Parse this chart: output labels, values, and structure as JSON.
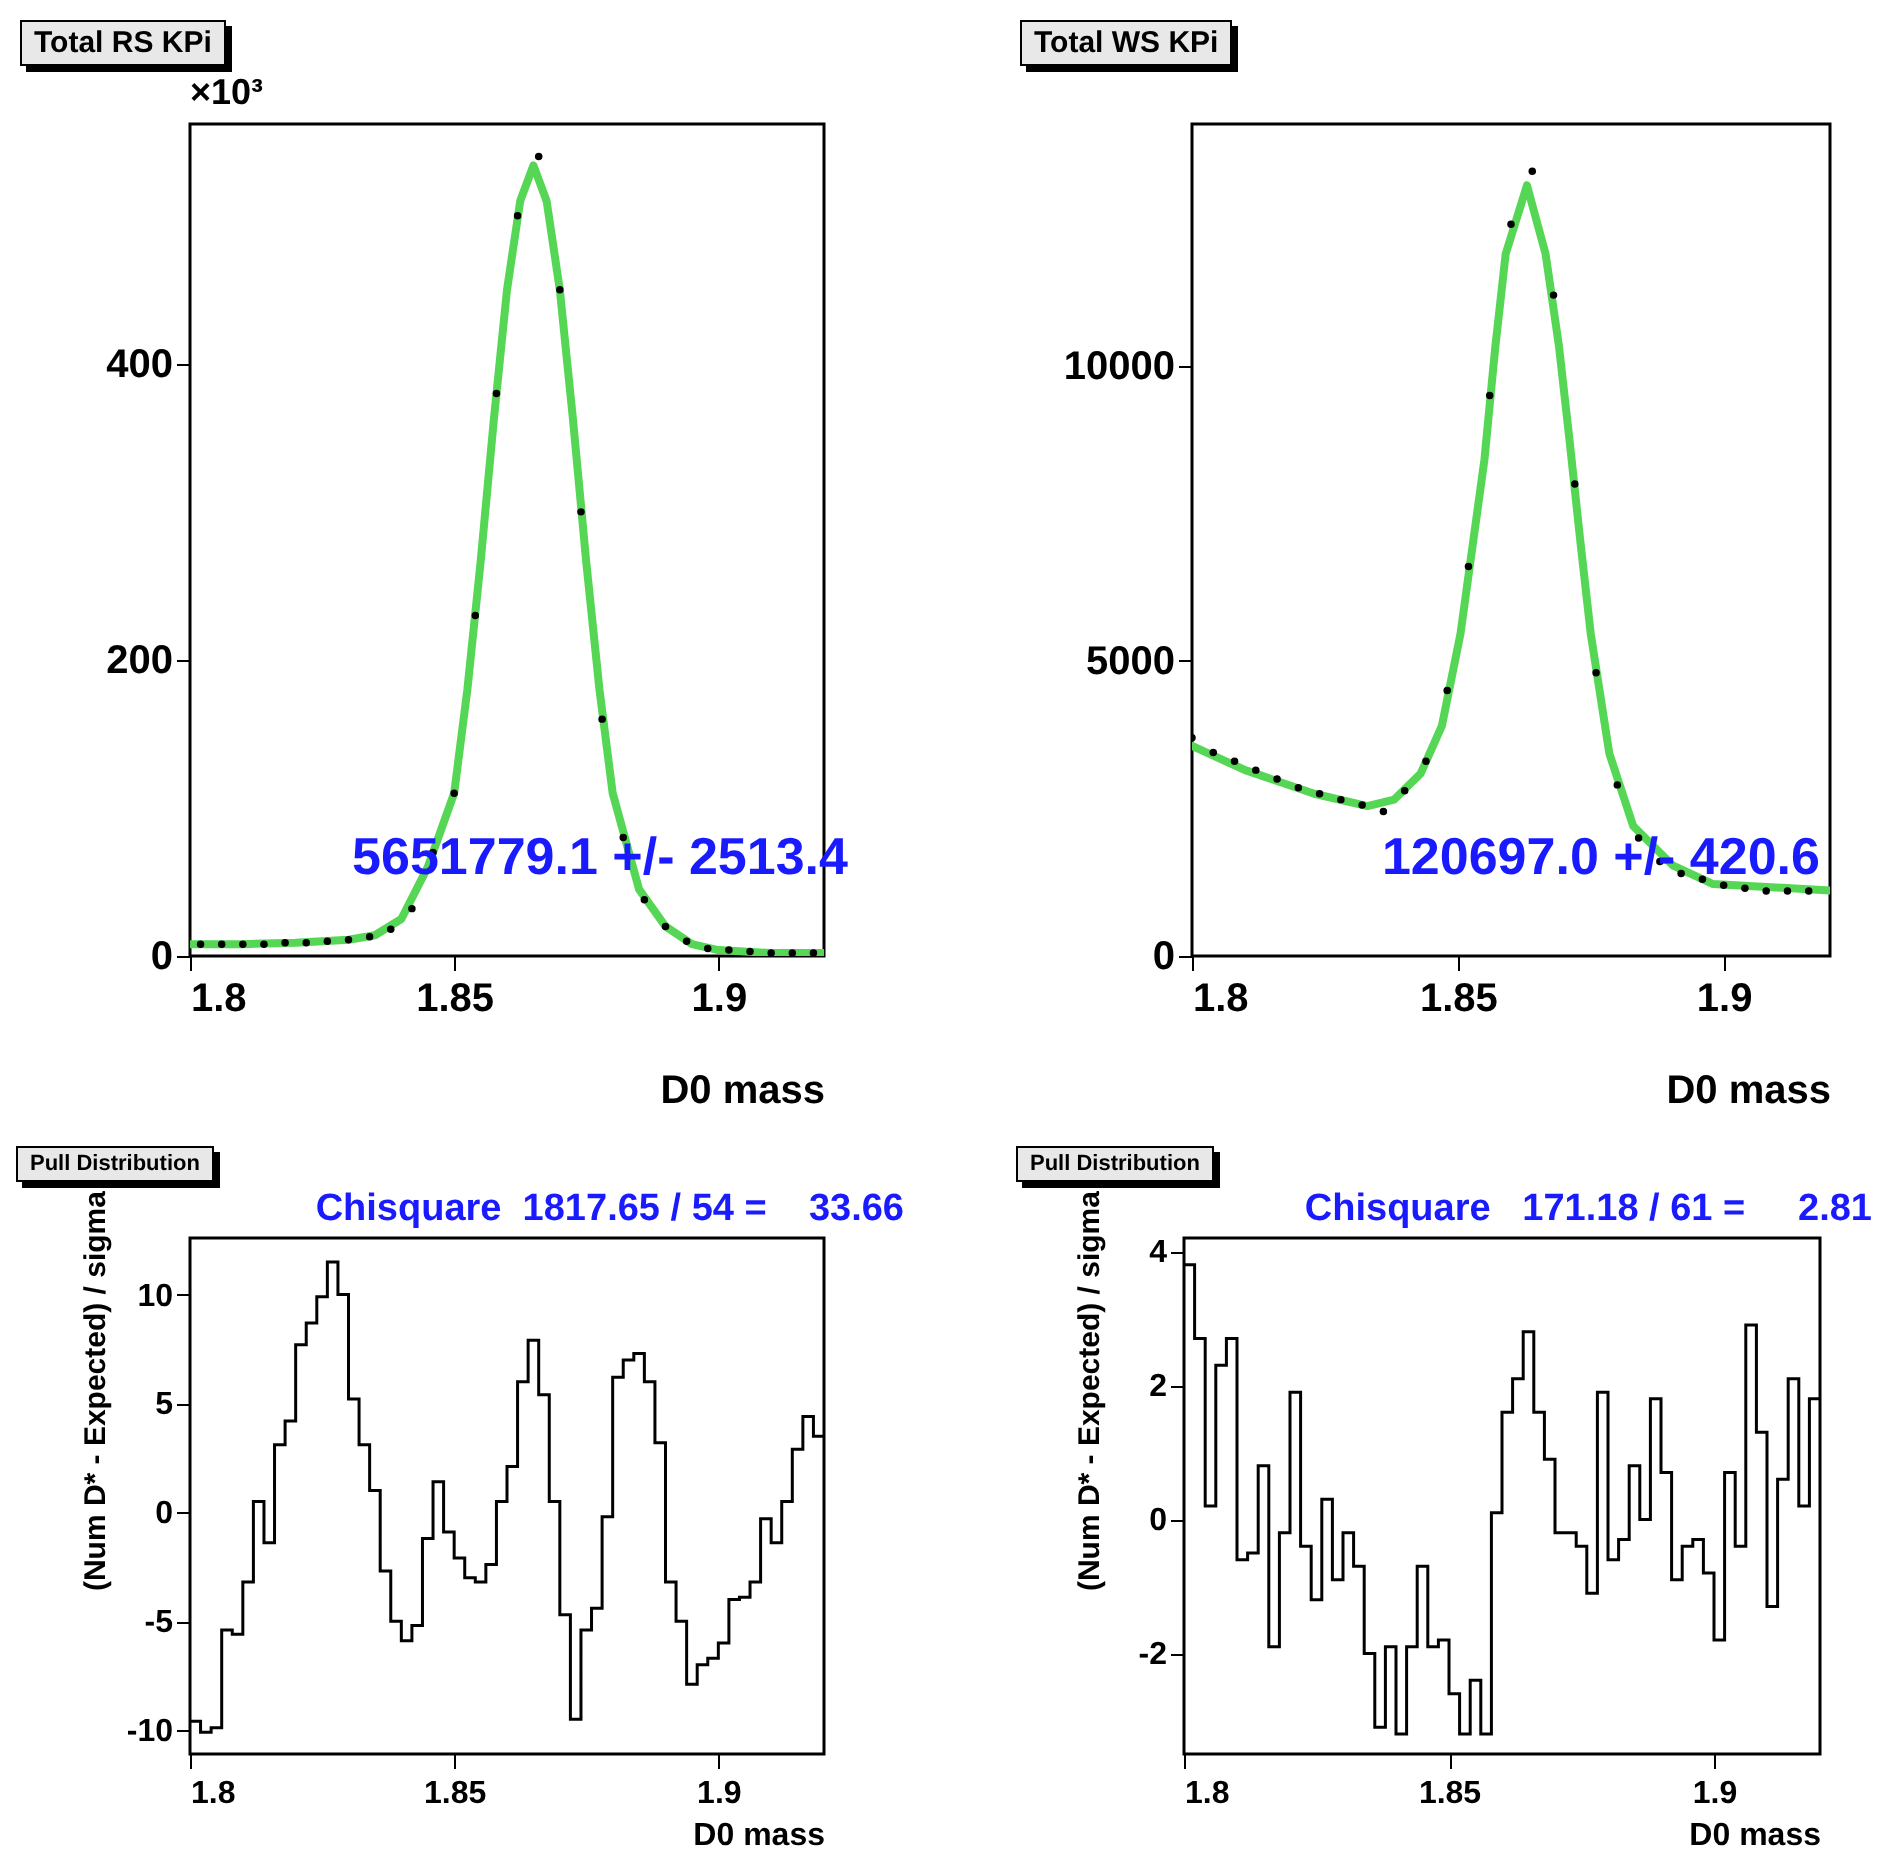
{
  "chart_data": [
    {
      "type": "scatter",
      "title": "Total RS KPi",
      "xlabel": "D0 mass",
      "xlim": [
        1.8,
        1.92
      ],
      "xticks": [
        1.8,
        1.85,
        1.9
      ],
      "ylim": [
        0,
        562
      ],
      "yticks": [
        0,
        200,
        400
      ],
      "annotations": [
        "×10³",
        "5651779.1 +/- 2513.4"
      ],
      "series": [
        {
          "type": "scatter",
          "marker": "circle",
          "color": "#000000",
          "x": [
            1.802,
            1.806,
            1.81,
            1.814,
            1.818,
            1.822,
            1.826,
            1.83,
            1.834,
            1.838,
            1.842,
            1.846,
            1.85,
            1.854,
            1.858,
            1.862,
            1.866,
            1.87,
            1.874,
            1.878,
            1.882,
            1.886,
            1.89,
            1.894,
            1.898,
            1.902,
            1.906,
            1.91,
            1.914,
            1.918
          ],
          "values": [
            8,
            8,
            8,
            8,
            9,
            9,
            10,
            11,
            13,
            18,
            32,
            70,
            110,
            230,
            380,
            500,
            540,
            450,
            300,
            160,
            80,
            38,
            20,
            10,
            5,
            4,
            3,
            2,
            2,
            2
          ]
        },
        {
          "type": "line",
          "color": "#55d655",
          "x": [
            1.8,
            1.81,
            1.82,
            1.83,
            1.835,
            1.84,
            1.845,
            1.85,
            1.8525,
            1.855,
            1.8575,
            1.86,
            1.8625,
            1.865,
            1.8675,
            1.87,
            1.8725,
            1.875,
            1.8775,
            1.88,
            1.885,
            1.89,
            1.895,
            1.9,
            1.91,
            1.92
          ],
          "values": [
            8,
            8,
            9,
            11,
            14,
            25,
            60,
            110,
            180,
            266,
            362,
            450,
            510,
            534,
            510,
            450,
            362,
            266,
            180,
            110,
            45,
            20,
            8,
            4,
            2,
            2
          ]
        }
      ]
    },
    {
      "type": "scatter",
      "title": "Total WS KPi",
      "xlabel": "D0 mass",
      "xlim": [
        1.8,
        1.92
      ],
      "xticks": [
        1.8,
        1.85,
        1.9
      ],
      "ylim": [
        0,
        14100
      ],
      "yticks": [
        0,
        5000,
        10000
      ],
      "annotations": [
        "120697.0 +/- 420.6"
      ],
      "series": [
        {
          "type": "scatter",
          "marker": "circle",
          "color": "#000000",
          "x": [
            1.8,
            1.804,
            1.808,
            1.812,
            1.816,
            1.82,
            1.824,
            1.828,
            1.832,
            1.836,
            1.84,
            1.844,
            1.848,
            1.852,
            1.856,
            1.86,
            1.864,
            1.868,
            1.872,
            1.876,
            1.88,
            1.884,
            1.888,
            1.892,
            1.896,
            1.9,
            1.904,
            1.908,
            1.912,
            1.916
          ],
          "values": [
            3700,
            3450,
            3300,
            3150,
            3000,
            2850,
            2750,
            2650,
            2560,
            2450,
            2800,
            3300,
            4500,
            6600,
            9500,
            12400,
            13300,
            11200,
            8000,
            4800,
            2900,
            2000,
            1600,
            1400,
            1300,
            1200,
            1150,
            1100,
            1100,
            1100
          ]
        },
        {
          "type": "line",
          "color": "#55d655",
          "x": [
            1.8,
            1.81,
            1.823,
            1.833,
            1.838,
            1.843,
            1.847,
            1.8505,
            1.855,
            1.857,
            1.859,
            1.863,
            1.8665,
            1.869,
            1.871,
            1.873,
            1.875,
            1.8785,
            1.883,
            1.8905,
            1.898,
            1.92
          ],
          "values": [
            3560,
            3150,
            2750,
            2540,
            2650,
            3090,
            3900,
            5460,
            8410,
            10280,
            11900,
            13060,
            11900,
            10350,
            8750,
            7060,
            5460,
            3430,
            2200,
            1530,
            1220,
            1110
          ]
        }
      ]
    },
    {
      "type": "histogram",
      "title": "Pull Distribution",
      "xlabel": "D0 mass",
      "ylabel": "(Num D* - Expected) / sigma",
      "color": "#000000",
      "xlim": [
        1.8,
        1.92
      ],
      "xticks": [
        1.8,
        1.85,
        1.9
      ],
      "ylim": [
        -11.1,
        12.6
      ],
      "yticks": [
        -10,
        -5,
        0,
        5,
        10
      ],
      "annotations": [
        "Chisquare  1817.65 / 54 =    33.66"
      ],
      "bins": [
        1.8,
        1.802,
        1.804,
        1.806,
        1.808,
        1.81,
        1.812,
        1.814,
        1.816,
        1.818,
        1.82,
        1.822,
        1.824,
        1.826,
        1.828,
        1.83,
        1.832,
        1.834,
        1.836,
        1.838,
        1.84,
        1.842,
        1.844,
        1.846,
        1.848,
        1.85,
        1.852,
        1.854,
        1.856,
        1.858,
        1.86,
        1.862,
        1.864,
        1.866,
        1.868,
        1.87,
        1.872,
        1.874,
        1.876,
        1.878,
        1.88,
        1.882,
        1.884,
        1.886,
        1.888,
        1.89,
        1.892,
        1.894,
        1.896,
        1.898,
        1.9,
        1.902,
        1.904,
        1.906,
        1.908,
        1.91,
        1.912,
        1.914,
        1.916,
        1.918,
        1.92
      ],
      "values": [
        -9.6,
        -10.1,
        -9.9,
        -5.4,
        -5.6,
        -3.2,
        0.5,
        -1.4,
        3.1,
        4.2,
        7.7,
        8.7,
        9.9,
        11.5,
        10,
        5.2,
        3.1,
        1,
        -2.7,
        -5,
        -5.9,
        -5.2,
        -1.2,
        1.4,
        -0.9,
        -2.1,
        -3,
        -3.2,
        -2.4,
        0.5,
        2.1,
        6,
        7.9,
        5.4,
        0.5,
        -4.7,
        -9.5,
        -5.4,
        -4.4,
        -0.2,
        6.2,
        7,
        7.3,
        6,
        3.2,
        -3.2,
        -5,
        -7.9,
        -7,
        -6.7,
        -6,
        -4,
        -3.9,
        -3.2,
        -0.3,
        -1.4,
        0.5,
        2.9,
        4.4,
        3.5
      ]
    },
    {
      "type": "histogram",
      "title": "Pull Distribution",
      "xlabel": "D0 mass",
      "ylabel": "(Num D* - Expected) / sigma",
      "color": "#000000",
      "xlim": [
        1.8,
        1.92
      ],
      "xticks": [
        1.8,
        1.85,
        1.9
      ],
      "ylim": [
        -3.5,
        4.2
      ],
      "yticks": [
        -2,
        0,
        2,
        4
      ],
      "annotations": [
        "Chisquare   171.18 / 61 =     2.81"
      ],
      "bins": [
        1.8,
        1.802,
        1.804,
        1.806,
        1.808,
        1.81,
        1.812,
        1.814,
        1.816,
        1.818,
        1.82,
        1.822,
        1.824,
        1.826,
        1.828,
        1.83,
        1.832,
        1.834,
        1.836,
        1.838,
        1.84,
        1.842,
        1.844,
        1.846,
        1.848,
        1.85,
        1.852,
        1.854,
        1.856,
        1.858,
        1.86,
        1.862,
        1.864,
        1.866,
        1.868,
        1.87,
        1.872,
        1.874,
        1.876,
        1.878,
        1.88,
        1.882,
        1.884,
        1.886,
        1.888,
        1.89,
        1.892,
        1.894,
        1.896,
        1.898,
        1.9,
        1.902,
        1.904,
        1.906,
        1.908,
        1.91,
        1.912,
        1.914,
        1.916,
        1.918,
        1.92
      ],
      "values": [
        3.8,
        2.7,
        0.2,
        2.3,
        2.7,
        -0.6,
        -0.5,
        0.8,
        -1.9,
        -0.2,
        1.9,
        -0.4,
        -1.2,
        0.3,
        -0.9,
        -0.2,
        -0.7,
        -2,
        -3.1,
        -1.9,
        -3.2,
        -1.9,
        -0.7,
        -1.9,
        -1.8,
        -2.6,
        -3.2,
        -2.4,
        -3.2,
        0.1,
        1.6,
        2.1,
        2.8,
        1.6,
        0.9,
        -0.2,
        -0.2,
        -0.4,
        -1.1,
        1.9,
        -0.6,
        -0.3,
        0.8,
        0,
        1.8,
        0.7,
        -0.9,
        -0.4,
        -0.3,
        -0.8,
        -1.8,
        0.7,
        -0.4,
        2.9,
        1.3,
        -1.3,
        0.6,
        2.1,
        0.2,
        1.8
      ]
    }
  ]
}
